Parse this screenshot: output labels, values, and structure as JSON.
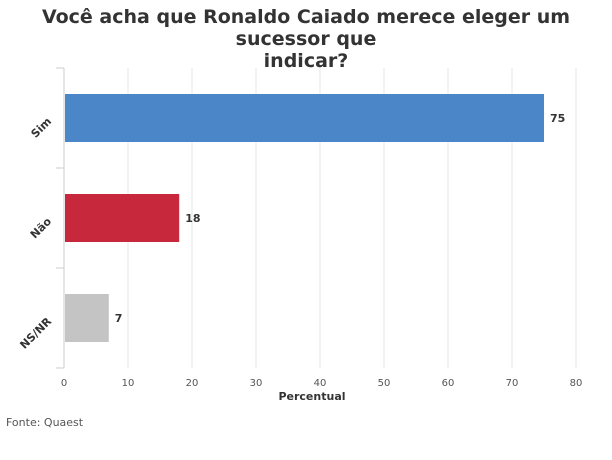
{
  "title_lines": [
    "Você acha que Ronaldo Caiado merece eleger um sucessor que",
    "indicar?"
  ],
  "source": "Fonte: Quaest",
  "chart_data": {
    "type": "bar",
    "orientation": "horizontal",
    "title": "Você acha que Ronaldo Caiado merece eleger um sucessor que indicar?",
    "categories": [
      "Sim",
      "Não",
      "NS/NR"
    ],
    "values": [
      75,
      18,
      7
    ],
    "colors": [
      "#4a86c8",
      "#c8283c",
      "#c4c4c4"
    ],
    "xlabel": "Percentual",
    "ylabel": "",
    "xlim": [
      0,
      80
    ],
    "xticks": [
      0,
      10,
      20,
      30,
      40,
      50,
      60,
      70,
      80
    ],
    "grid": true,
    "data_labels": true
  }
}
